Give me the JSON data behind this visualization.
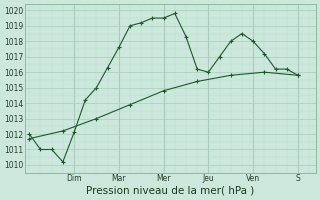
{
  "bg_color": "#cce8dc",
  "grid_major_color": "#aaccbb",
  "grid_minor_color": "#bbddd0",
  "line_color": "#1a5c28",
  "ylabel_ticks": [
    1010,
    1011,
    1012,
    1013,
    1014,
    1015,
    1016,
    1017,
    1018,
    1019,
    1020
  ],
  "xlabel": "Pression niveau de la mer( hPa )",
  "day_labels": [
    "Dim",
    "Mar",
    "Mer",
    "Jeu",
    "Ven",
    "S"
  ],
  "day_positions": [
    2.0,
    4.0,
    6.0,
    8.0,
    10.0,
    12.0
  ],
  "ylim": [
    1009.5,
    1020.4
  ],
  "xlim": [
    -0.2,
    12.8
  ],
  "line1_x": [
    0.0,
    0.5,
    1.0,
    1.5,
    2.0,
    2.5,
    3.0,
    3.5,
    4.0,
    4.5,
    5.0,
    5.5,
    6.0,
    6.5,
    7.0,
    7.5,
    8.0,
    8.5,
    9.0,
    9.5,
    10.0,
    10.5,
    11.0,
    11.5,
    12.0
  ],
  "line1_y": [
    1012.0,
    1011.0,
    1011.0,
    1010.2,
    1012.1,
    1014.2,
    1015.0,
    1016.3,
    1017.6,
    1019.0,
    1019.2,
    1019.5,
    1019.5,
    1019.8,
    1018.3,
    1016.2,
    1016.0,
    1017.0,
    1018.0,
    1018.5,
    1018.0,
    1017.2,
    1016.2,
    1016.2,
    1015.8
  ],
  "line2_x": [
    0.0,
    1.5,
    3.0,
    4.5,
    6.0,
    7.5,
    9.0,
    10.5,
    12.0
  ],
  "line2_y": [
    1011.7,
    1012.2,
    1013.0,
    1013.9,
    1014.8,
    1015.4,
    1015.8,
    1016.0,
    1015.8
  ],
  "tick_fontsize": 5.5,
  "xlabel_fontsize": 7.5
}
